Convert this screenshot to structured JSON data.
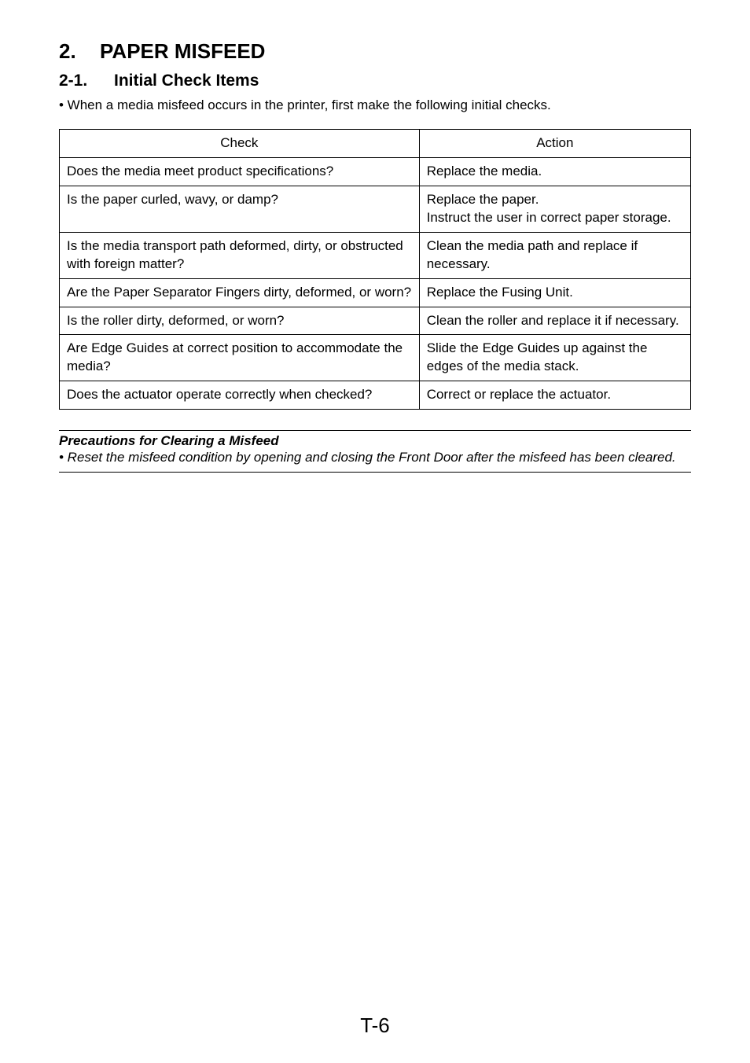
{
  "heading1": {
    "num": "2.",
    "text": "PAPER MISFEED"
  },
  "heading2": {
    "num": "2-1.",
    "text": "Initial Check Items"
  },
  "intro": "• When a media misfeed occurs in the printer, first make the following initial checks.",
  "table": {
    "head": {
      "c1": "Check",
      "c2": "Action"
    },
    "rows": [
      {
        "c1": "Does the media meet product specifications?",
        "c2": "Replace the media."
      },
      {
        "c1": "Is the paper curled, wavy, or damp?",
        "c2": "Replace the paper.\nInstruct the user in correct paper storage."
      },
      {
        "c1": "Is the media transport path deformed, dirty, or obstructed with foreign matter?",
        "c2": "Clean the media path and replace if necessary."
      },
      {
        "c1": "Are the Paper Separator Fingers dirty, deformed, or worn?",
        "c2": "Replace the Fusing Unit."
      },
      {
        "c1": "Is the roller dirty, deformed, or worn?",
        "c2": "Clean the roller and replace it if necessary."
      },
      {
        "c1": "Are Edge Guides at correct position to accommodate the media?",
        "c2": "Slide the Edge Guides up against the edges of the media stack."
      },
      {
        "c1": "Does the actuator operate correctly when checked?",
        "c2": "Correct or replace the actuator."
      }
    ]
  },
  "precautions": {
    "title": "Precautions for Clearing a Misfeed",
    "body": "• Reset the misfeed condition by opening and closing the Front Door after the misfeed has been cleared."
  },
  "pagenum": "T-6"
}
